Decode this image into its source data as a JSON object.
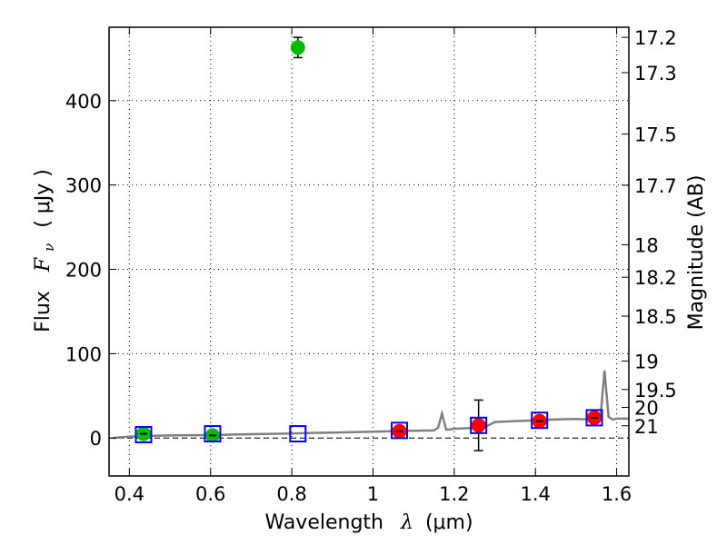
{
  "chart_data": {
    "type": "scatter",
    "xlabel": "Wavelength",
    "xlabel_symbol": "λ",
    "xlabel_unit": "(μm)",
    "ylabel": "Flux",
    "ylabel_symbol": "F",
    "ylabel_subscript": "ν",
    "ylabel_unit": "( μJy )",
    "y2label": "Magnitude (AB)",
    "xlim": [
      0.35,
      1.63
    ],
    "ylim": [
      -45,
      487
    ],
    "grid": true,
    "x_ticks": [
      {
        "value": 0.4,
        "label": "0.4"
      },
      {
        "value": 0.6,
        "label": "0.6"
      },
      {
        "value": 0.8,
        "label": "0.8"
      },
      {
        "value": 1.0,
        "label": "1"
      },
      {
        "value": 1.2,
        "label": "1.2"
      },
      {
        "value": 1.4,
        "label": "1.4"
      },
      {
        "value": 1.6,
        "label": "1.6"
      }
    ],
    "y_ticks": [
      {
        "value": 0,
        "label": "0"
      },
      {
        "value": 100,
        "label": "100"
      },
      {
        "value": 200,
        "label": "200"
      },
      {
        "value": 300,
        "label": "300"
      },
      {
        "value": 400,
        "label": "400"
      }
    ],
    "y2_ticks": [
      {
        "flux": 475.0,
        "label": "17.2"
      },
      {
        "flux": 433.2,
        "label": "17.3"
      },
      {
        "flux": 360.3,
        "label": "17.5"
      },
      {
        "flux": 299.7,
        "label": "17.7"
      },
      {
        "flux": 229.1,
        "label": "18"
      },
      {
        "flux": 190.6,
        "label": "18.2"
      },
      {
        "flux": 144.5,
        "label": "18.5"
      },
      {
        "flux": 91.2,
        "label": "19"
      },
      {
        "flux": 57.5,
        "label": "19.5"
      },
      {
        "flux": 36.3,
        "label": "20"
      },
      {
        "flux": 14.5,
        "label": "21"
      }
    ],
    "model_spectrum": {
      "color": "#808080",
      "x": [
        0.36,
        0.38,
        0.4,
        0.42,
        0.45,
        0.5,
        0.55,
        0.6,
        0.65,
        0.7,
        0.75,
        0.8,
        0.85,
        0.9,
        0.95,
        1.0,
        1.05,
        1.1,
        1.15,
        1.16,
        1.17,
        1.18,
        1.19,
        1.2,
        1.25,
        1.26,
        1.27,
        1.28,
        1.3,
        1.35,
        1.4,
        1.45,
        1.5,
        1.54,
        1.56,
        1.57,
        1.58,
        1.59,
        1.6,
        1.63
      ],
      "y": [
        0,
        1,
        1.5,
        2,
        2.5,
        3,
        3.3,
        3.5,
        4,
        4.5,
        5,
        5.3,
        6,
        6.5,
        7,
        7.5,
        8,
        8.5,
        9,
        12,
        29,
        10,
        10,
        11,
        12,
        18,
        13,
        14,
        19,
        20,
        21,
        22,
        22.5,
        22,
        23,
        80,
        25,
        22,
        23,
        23
      ]
    },
    "series": [
      {
        "name": "green",
        "color": "#00bb00",
        "x": [
          0.435,
          0.605,
          0.815
        ],
        "y": [
          5,
          3,
          463
        ],
        "yerr": [
          0,
          0,
          12
        ]
      },
      {
        "name": "red",
        "color": "#ff0000",
        "x": [
          1.065,
          1.26,
          1.41,
          1.545
        ],
        "y": [
          8,
          15,
          20,
          24
        ],
        "yerr": [
          0,
          30,
          0,
          0
        ]
      }
    ],
    "model_boxes": {
      "color": "#0000ff",
      "x": [
        0.435,
        0.605,
        0.815,
        1.065,
        1.26,
        1.41,
        1.545
      ],
      "y": [
        4,
        5,
        5,
        9,
        15,
        21,
        24
      ]
    }
  }
}
